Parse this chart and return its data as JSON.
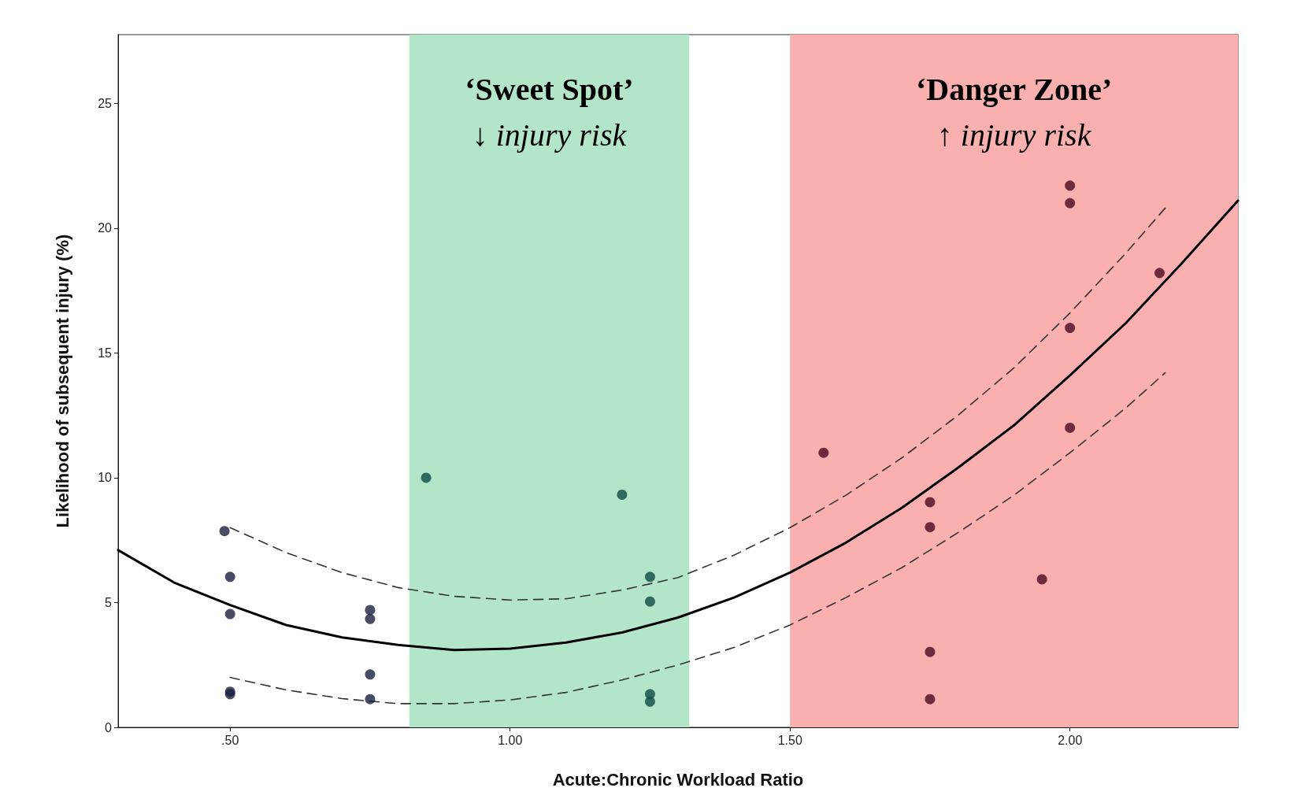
{
  "chart_data": {
    "type": "scatter",
    "xlabel": "Acute:Chronic Workload Ratio",
    "ylabel": "Likelihood of subsequent injury (%)",
    "xlim": [
      0.3,
      2.3
    ],
    "ylim": [
      0,
      27.75
    ],
    "xticks": [
      {
        "value": 0.5,
        "label": ".50"
      },
      {
        "value": 1,
        "label": "1.00"
      },
      {
        "value": 1.5,
        "label": "1.50"
      },
      {
        "value": 2,
        "label": "2.00"
      }
    ],
    "yticks": [
      0,
      5,
      10,
      15,
      20,
      25
    ],
    "grid": false,
    "marker": "circle",
    "bands": [
      {
        "axis": "x",
        "from": 0.82,
        "to": 1.32,
        "label": "‘Sweet Spot’\n↓ injury risk",
        "color": "#b3e6c9"
      },
      {
        "axis": "x",
        "from": 1.5,
        "to": 2.3,
        "label": "‘Danger Zone’\n↑ injury risk",
        "color": "#fbb0b0"
      }
    ],
    "series": [
      {
        "color": "#1b1f3f",
        "x": [
          0.49,
          0.5,
          0.5,
          0.5,
          0.5,
          0.75,
          0.75,
          0.75,
          0.75
        ],
        "values": [
          7.86,
          6.03,
          4.54,
          1.43,
          1.33,
          4.7,
          4.34,
          2.12,
          1.13
        ]
      },
      {
        "color": "#0f4a45",
        "x": [
          0.85,
          1.2,
          1.25,
          1.25,
          1.25,
          1.25
        ],
        "values": [
          10.0,
          9.32,
          6.03,
          5.04,
          1.33,
          1.03
        ]
      },
      {
        "color": "#4a0a20",
        "x": [
          1.56,
          1.75,
          1.75,
          1.75,
          1.75,
          1.95,
          2.0,
          2.0,
          2.0,
          2.0,
          2.16
        ],
        "values": [
          11.0,
          9.02,
          8.02,
          3.02,
          1.13,
          5.93,
          21.7,
          21.0,
          16.0,
          12.0,
          18.2
        ]
      },
      {
        "type": "line",
        "color": "#000000",
        "line_style": "solid",
        "marker": "none",
        "x": [
          0.3,
          0.4,
          0.5,
          0.6,
          0.7,
          0.8,
          0.9,
          1.0,
          1.1,
          1.2,
          1.3,
          1.4,
          1.5,
          1.6,
          1.7,
          1.8,
          1.9,
          2.0,
          2.1,
          2.2,
          2.3
        ],
        "values": [
          7.1,
          5.8,
          4.9,
          4.1,
          3.6,
          3.3,
          3.1,
          3.15,
          3.4,
          3.8,
          4.4,
          5.2,
          6.2,
          7.4,
          8.8,
          10.4,
          12.1,
          14.1,
          16.2,
          18.6,
          21.1
        ]
      },
      {
        "type": "line",
        "color": "#333333",
        "line_style": "dashed",
        "marker": "none",
        "x": [
          0.5,
          0.6,
          0.7,
          0.8,
          0.9,
          1.0,
          1.1,
          1.2,
          1.3,
          1.4,
          1.5,
          1.6,
          1.7,
          1.8,
          1.9,
          2.0,
          2.1,
          2.17
        ],
        "values": [
          8.0,
          7.0,
          6.2,
          5.6,
          5.25,
          5.1,
          5.15,
          5.5,
          6.0,
          6.9,
          8.0,
          9.3,
          10.8,
          12.5,
          14.4,
          16.6,
          19.0,
          20.8
        ]
      },
      {
        "type": "line",
        "color": "#333333",
        "line_style": "dashed",
        "marker": "none",
        "x": [
          0.5,
          0.6,
          0.7,
          0.8,
          0.9,
          1.0,
          1.1,
          1.2,
          1.3,
          1.4,
          1.5,
          1.6,
          1.7,
          1.8,
          1.9,
          2.0,
          2.1,
          2.17
        ],
        "values": [
          2.0,
          1.5,
          1.15,
          0.95,
          0.95,
          1.1,
          1.4,
          1.9,
          2.5,
          3.2,
          4.1,
          5.2,
          6.4,
          7.8,
          9.3,
          11.0,
          12.8,
          14.2
        ]
      }
    ]
  }
}
